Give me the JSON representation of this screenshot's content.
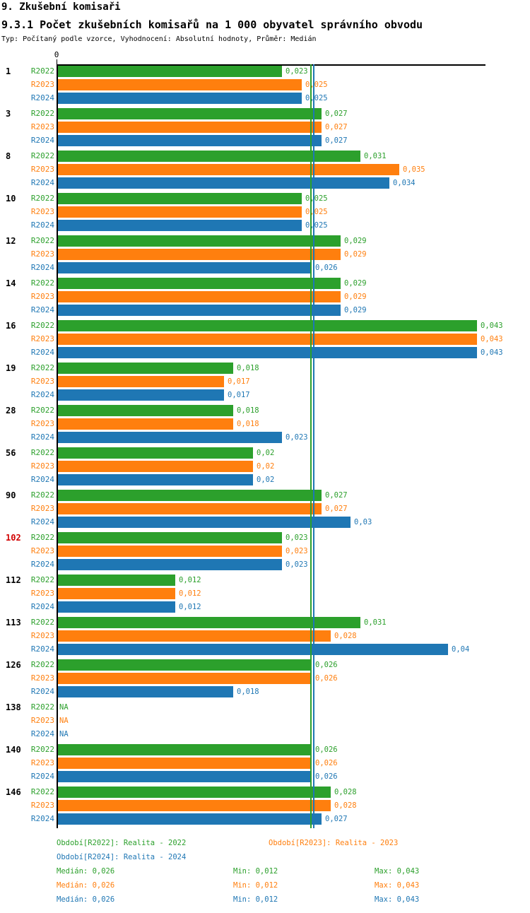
{
  "header": {
    "title": "9. Zkušební komisaři",
    "subtitle": "9.3.1 Počet zkušebních komisařů na 1 000 obyvatel správního obvodu",
    "meta": "Typ: Počítaný podle vzorce, Vyhodnocení: Absolutní hodnoty, Průměr: Medián"
  },
  "colors": {
    "r2022": "#2ca02c",
    "r2023": "#ff7f0e",
    "r2024": "#1f77b4",
    "highlight_category": "#d10000",
    "axis": "#000000"
  },
  "chart_data": {
    "type": "bar",
    "orientation": "horizontal",
    "title": "9.3.1 Počet zkušebních komisařů na 1 000 obyvatel správního obvodu",
    "xlabel": "",
    "ylabel": "",
    "x_axis": {
      "origin_tick_label": "0",
      "xlim": [
        0,
        0.044
      ],
      "grid": false
    },
    "series": [
      {
        "name": "R2022",
        "color": "#2ca02c",
        "median": 0.026,
        "median_label": "Medián: 0,026",
        "min_label": "Min: 0,012",
        "max_label": "Max: 0,043",
        "line_style": "solid"
      },
      {
        "name": "R2023",
        "color": "#ff7f0e",
        "median": 0.026,
        "median_label": "Medián: 0,026",
        "min_label": "Min: 0,012",
        "max_label": "Max: 0,043",
        "line_style": "dashed"
      },
      {
        "name": "R2024",
        "color": "#1f77b4",
        "median": 0.026,
        "median_label": "Medián: 0,026",
        "min_label": "Min: 0,012",
        "max_label": "Max: 0,043",
        "line_style": "solid"
      }
    ],
    "groups": [
      {
        "category": "1",
        "highlight": false,
        "values": [
          0.023,
          0.025,
          0.025
        ],
        "value_labels": [
          "0,023",
          "0,025",
          "0,025"
        ]
      },
      {
        "category": "3",
        "highlight": false,
        "values": [
          0.027,
          0.027,
          0.027
        ],
        "value_labels": [
          "0,027",
          "0,027",
          "0,027"
        ]
      },
      {
        "category": "8",
        "highlight": false,
        "values": [
          0.031,
          0.035,
          0.034
        ],
        "value_labels": [
          "0,031",
          "0,035",
          "0,034"
        ]
      },
      {
        "category": "10",
        "highlight": false,
        "values": [
          0.025,
          0.025,
          0.025
        ],
        "value_labels": [
          "0,025",
          "0,025",
          "0,025"
        ]
      },
      {
        "category": "12",
        "highlight": false,
        "values": [
          0.029,
          0.029,
          0.026
        ],
        "value_labels": [
          "0,029",
          "0,029",
          "0,026"
        ]
      },
      {
        "category": "14",
        "highlight": false,
        "values": [
          0.029,
          0.029,
          0.029
        ],
        "value_labels": [
          "0,029",
          "0,029",
          "0,029"
        ]
      },
      {
        "category": "16",
        "highlight": false,
        "values": [
          0.043,
          0.043,
          0.043
        ],
        "value_labels": [
          "0,043",
          "0,043",
          "0,043"
        ]
      },
      {
        "category": "19",
        "highlight": false,
        "values": [
          0.018,
          0.017,
          0.017
        ],
        "value_labels": [
          "0,018",
          "0,017",
          "0,017"
        ]
      },
      {
        "category": "28",
        "highlight": false,
        "values": [
          0.018,
          0.018,
          0.023
        ],
        "value_labels": [
          "0,018",
          "0,018",
          "0,023"
        ]
      },
      {
        "category": "56",
        "highlight": false,
        "values": [
          0.02,
          0.02,
          0.02
        ],
        "value_labels": [
          "0,02",
          "0,02",
          "0,02"
        ]
      },
      {
        "category": "90",
        "highlight": false,
        "values": [
          0.027,
          0.027,
          0.03
        ],
        "value_labels": [
          "0,027",
          "0,027",
          "0,03"
        ]
      },
      {
        "category": "102",
        "highlight": true,
        "values": [
          0.023,
          0.023,
          0.023
        ],
        "value_labels": [
          "0,023",
          "0,023",
          "0,023"
        ]
      },
      {
        "category": "112",
        "highlight": false,
        "values": [
          0.012,
          0.012,
          0.012
        ],
        "value_labels": [
          "0,012",
          "0,012",
          "0,012"
        ]
      },
      {
        "category": "113",
        "highlight": false,
        "values": [
          0.031,
          0.028,
          0.04
        ],
        "value_labels": [
          "0,031",
          "0,028",
          "0,04"
        ]
      },
      {
        "category": "126",
        "highlight": false,
        "values": [
          0.026,
          0.026,
          0.018
        ],
        "value_labels": [
          "0,026",
          "0,026",
          "0,018"
        ]
      },
      {
        "category": "138",
        "highlight": false,
        "values": [
          null,
          null,
          null
        ],
        "value_labels": [
          "NA",
          "NA",
          "NA"
        ]
      },
      {
        "category": "140",
        "highlight": false,
        "values": [
          0.026,
          0.026,
          0.026
        ],
        "value_labels": [
          "0,026",
          "0,026",
          "0,026"
        ]
      },
      {
        "category": "146",
        "highlight": false,
        "values": [
          0.028,
          0.028,
          0.027
        ],
        "value_labels": [
          "0,028",
          "0,028",
          "0,027"
        ]
      }
    ]
  },
  "legend": {
    "periods": [
      {
        "label": "Období[R2022]: Realita - 2022",
        "color": "#2ca02c"
      },
      {
        "label": "Období[R2023]: Realita - 2023",
        "color": "#ff7f0e"
      },
      {
        "label": "Období[R2024]: Realita - 2024",
        "color": "#1f77b4"
      }
    ]
  }
}
